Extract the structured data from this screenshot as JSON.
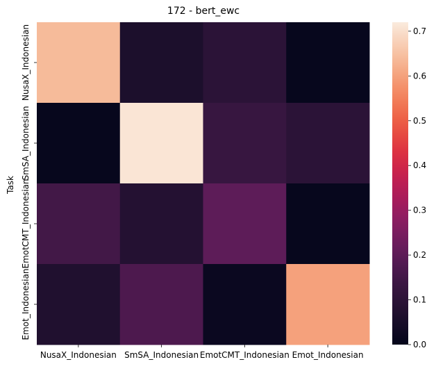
{
  "chart_data": {
    "type": "heatmap",
    "title": "172 - bert_ewc",
    "xlabel": "",
    "ylabel": "Task",
    "x_categories": [
      "NusaX_Indonesian",
      "SmSA_Indonesian",
      "EmotCMT_Indonesian",
      "Emot_Indonesian"
    ],
    "y_categories": [
      "NusaX_Indonesian",
      "SmSA_Indonesian",
      "EmotCMT_Indonesian",
      "Emot_Indonesian"
    ],
    "values": [
      [
        0.64,
        0.06,
        0.1,
        0.01
      ],
      [
        0.01,
        0.71,
        0.13,
        0.1
      ],
      [
        0.15,
        0.08,
        0.2,
        0.01
      ],
      [
        0.07,
        0.17,
        0.02,
        0.6
      ]
    ],
    "colorbar": {
      "range": [
        0.0,
        0.72
      ],
      "ticks": [
        "0.0",
        "0.1",
        "0.2",
        "0.3",
        "0.4",
        "0.5",
        "0.6",
        "0.7"
      ],
      "colormap": "rocket"
    }
  }
}
